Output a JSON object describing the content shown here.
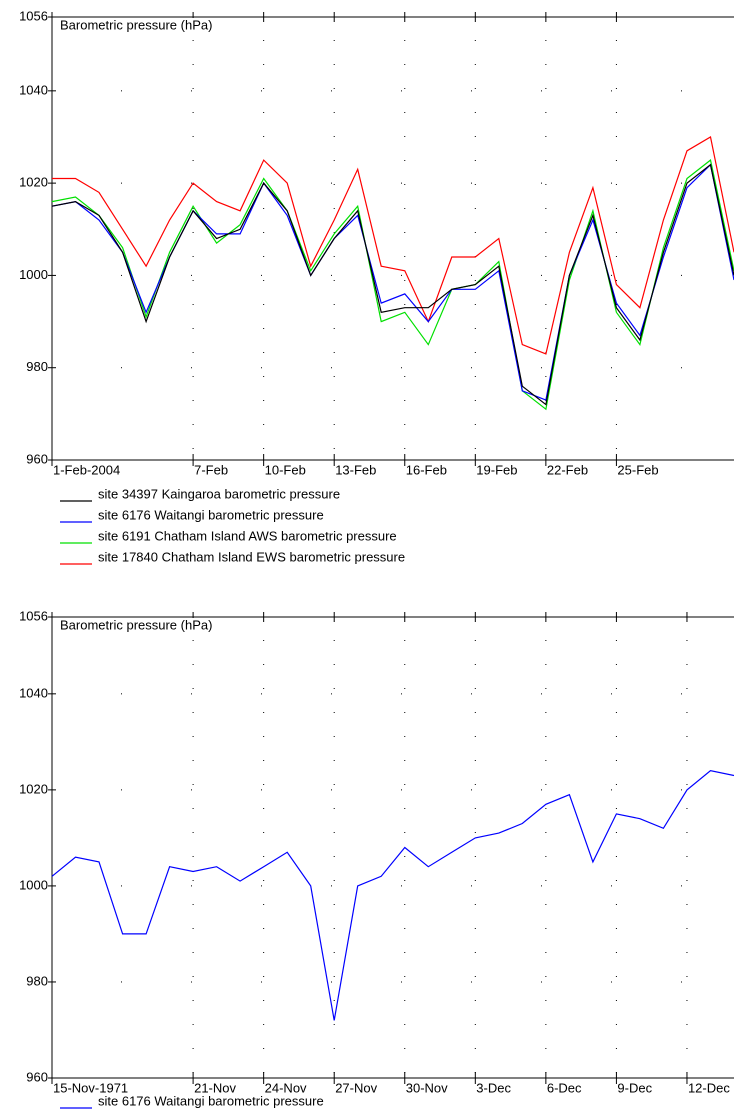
{
  "chart_data": [
    {
      "type": "line",
      "title": "Barometric pressure (hPa)",
      "x": [
        "2004-02-01",
        "2004-02-02",
        "2004-02-03",
        "2004-02-04",
        "2004-02-05",
        "2004-02-06",
        "2004-02-07",
        "2004-02-08",
        "2004-02-09",
        "2004-02-10",
        "2004-02-11",
        "2004-02-12",
        "2004-02-13",
        "2004-02-14",
        "2004-02-15",
        "2004-02-16",
        "2004-02-17",
        "2004-02-18",
        "2004-02-19",
        "2004-02-20",
        "2004-02-21",
        "2004-02-22",
        "2004-02-23",
        "2004-02-24",
        "2004-02-25",
        "2004-02-26",
        "2004-02-27",
        "2004-02-28",
        "2004-02-29",
        "2004-03-01"
      ],
      "series": [
        {
          "name": "site 34397 Kaingaroa barometric pressure",
          "color": "#000000",
          "values": [
            1015,
            1016,
            1013,
            1005,
            990,
            1004,
            1014,
            1008,
            1010,
            1020,
            1014,
            1000,
            1008,
            1014,
            992,
            993,
            993,
            997,
            998,
            1002,
            976,
            972,
            1000,
            1013,
            993,
            986,
            1005,
            1020,
            1024,
            1000
          ]
        },
        {
          "name": "site 6176 Waitangi barometric pressure",
          "color": "#0000ff",
          "values": [
            1015,
            1016,
            1012,
            1005,
            992,
            1004,
            1014,
            1009,
            1009,
            1020,
            1013,
            1000,
            1008,
            1013,
            994,
            996,
            990,
            997,
            997,
            1001,
            975,
            973,
            1000,
            1012,
            994,
            987,
            1004,
            1019,
            1024,
            999
          ]
        },
        {
          "name": "site 6191 Chatham Island AWS barometric pressure",
          "color": "#00e000",
          "values": [
            1016,
            1017,
            1013,
            1006,
            991,
            1005,
            1015,
            1007,
            1011,
            1021,
            1014,
            1001,
            1009,
            1015,
            990,
            992,
            985,
            997,
            998,
            1003,
            975,
            971,
            999,
            1014,
            992,
            985,
            1006,
            1021,
            1025,
            1001
          ]
        },
        {
          "name": "site 17840 Chatham Island EWS barometric pressure",
          "color": "#ff0000",
          "values": [
            1021,
            1021,
            1018,
            1010,
            1002,
            1012,
            1020,
            1016,
            1014,
            1025,
            1020,
            1002,
            1012,
            1023,
            1002,
            1001,
            990,
            1004,
            1004,
            1008,
            985,
            983,
            1005,
            1019,
            998,
            993,
            1012,
            1027,
            1030,
            1005
          ]
        }
      ],
      "xlim": [
        "2004-02-01",
        "2004-03-01"
      ],
      "xticks": [
        {
          "value": "2004-02-01",
          "label": "1-Feb-2004"
        },
        {
          "value": "2004-02-07",
          "label": "7-Feb"
        },
        {
          "value": "2004-02-10",
          "label": "10-Feb"
        },
        {
          "value": "2004-02-13",
          "label": "13-Feb"
        },
        {
          "value": "2004-02-16",
          "label": "16-Feb"
        },
        {
          "value": "2004-02-19",
          "label": "19-Feb"
        },
        {
          "value": "2004-02-22",
          "label": "22-Feb"
        },
        {
          "value": "2004-02-25",
          "label": "25-Feb"
        }
      ],
      "ylim": [
        960,
        1056
      ],
      "yticks": [
        960,
        980,
        1000,
        1020,
        1040,
        1056
      ],
      "grid": true
    },
    {
      "type": "line",
      "title": "Barometric pressure (hPa)",
      "x": [
        "1971-11-15",
        "1971-11-16",
        "1971-11-17",
        "1971-11-18",
        "1971-11-19",
        "1971-11-20",
        "1971-11-21",
        "1971-11-22",
        "1971-11-23",
        "1971-11-24",
        "1971-11-25",
        "1971-11-26",
        "1971-11-27",
        "1971-11-28",
        "1971-11-29",
        "1971-11-30",
        "1971-12-01",
        "1971-12-02",
        "1971-12-03",
        "1971-12-04",
        "1971-12-05",
        "1971-12-06",
        "1971-12-07",
        "1971-12-08",
        "1971-12-09",
        "1971-12-10",
        "1971-12-11",
        "1971-12-12",
        "1971-12-13",
        "1971-12-14"
      ],
      "series": [
        {
          "name": "site 6176 Waitangi barometric pressure",
          "color": "#0000ff",
          "values": [
            1002,
            1006,
            1005,
            990,
            990,
            1004,
            1003,
            1004,
            1001,
            1004,
            1007,
            1000,
            972,
            1000,
            1002,
            1008,
            1004,
            1007,
            1010,
            1011,
            1013,
            1017,
            1019,
            1005,
            1015,
            1014,
            1012,
            1020,
            1024,
            1023
          ]
        }
      ],
      "xlim": [
        "1971-11-15",
        "1971-12-14"
      ],
      "xticks": [
        {
          "value": "1971-11-15",
          "label": "15-Nov-1971"
        },
        {
          "value": "1971-11-21",
          "label": "21-Nov"
        },
        {
          "value": "1971-11-24",
          "label": "24-Nov"
        },
        {
          "value": "1971-11-27",
          "label": "27-Nov"
        },
        {
          "value": "1971-11-30",
          "label": "30-Nov"
        },
        {
          "value": "1971-12-03",
          "label": "3-Dec"
        },
        {
          "value": "1971-12-06",
          "label": "6-Dec"
        },
        {
          "value": "1971-12-09",
          "label": "9-Dec"
        },
        {
          "value": "1971-12-12",
          "label": "12-Dec"
        }
      ],
      "ylim": [
        960,
        1056
      ],
      "yticks": [
        960,
        980,
        1000,
        1020,
        1040,
        1056
      ],
      "grid": true
    }
  ]
}
